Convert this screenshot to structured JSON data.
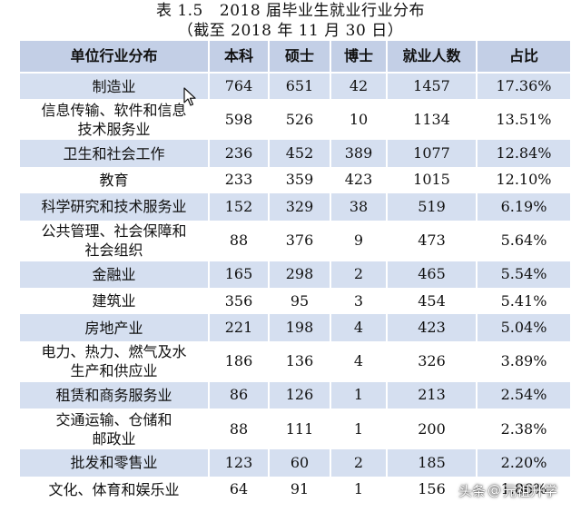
{
  "caption": {
    "table_number": "表 1.5",
    "title": "2018 届毕业生就业行业分布",
    "subtitle": "（截至 2018 年 11 月 30 日）"
  },
  "table": {
    "headers": [
      "单位行业分布",
      "本科",
      "硕士",
      "博士",
      "就业人数",
      "占比"
    ],
    "rows": [
      {
        "industry": [
          "制造业"
        ],
        "bachelor": "764",
        "master": "651",
        "doctor": "42",
        "total": "1457",
        "share": "17.36%"
      },
      {
        "industry": [
          "信息传输、软件和信息",
          "技术服务业"
        ],
        "bachelor": "598",
        "master": "526",
        "doctor": "10",
        "total": "1134",
        "share": "13.51%"
      },
      {
        "industry": [
          "卫生和社会工作"
        ],
        "bachelor": "236",
        "master": "452",
        "doctor": "389",
        "total": "1077",
        "share": "12.84%"
      },
      {
        "industry": [
          "教育"
        ],
        "bachelor": "233",
        "master": "359",
        "doctor": "423",
        "total": "1015",
        "share": "12.10%"
      },
      {
        "industry": [
          "科学研究和技术服务业"
        ],
        "bachelor": "152",
        "master": "329",
        "doctor": "38",
        "total": "519",
        "share": "6.19%"
      },
      {
        "industry": [
          "公共管理、社会保障和",
          "社会组织"
        ],
        "bachelor": "88",
        "master": "376",
        "doctor": "9",
        "total": "473",
        "share": "5.64%"
      },
      {
        "industry": [
          "金融业"
        ],
        "bachelor": "165",
        "master": "298",
        "doctor": "2",
        "total": "465",
        "share": "5.54%"
      },
      {
        "industry": [
          "建筑业"
        ],
        "bachelor": "356",
        "master": "95",
        "doctor": "3",
        "total": "454",
        "share": "5.41%"
      },
      {
        "industry": [
          "房地产业"
        ],
        "bachelor": "221",
        "master": "198",
        "doctor": "4",
        "total": "423",
        "share": "5.04%"
      },
      {
        "industry": [
          "电力、热力、燃气及水",
          "生产和供应业"
        ],
        "bachelor": "186",
        "master": "136",
        "doctor": "4",
        "total": "326",
        "share": "3.89%"
      },
      {
        "industry": [
          "租赁和商务服务业"
        ],
        "bachelor": "86",
        "master": "126",
        "doctor": "1",
        "total": "213",
        "share": "2.54%"
      },
      {
        "industry": [
          "交通运输、仓储和",
          "邮政业"
        ],
        "bachelor": "88",
        "master": "111",
        "doctor": "1",
        "total": "200",
        "share": "2.38%"
      },
      {
        "industry": [
          "批发和零售业"
        ],
        "bachelor": "123",
        "master": "60",
        "doctor": "2",
        "total": "185",
        "share": "2.20%"
      },
      {
        "industry": [
          "文化、体育和娱乐业"
        ],
        "bachelor": "64",
        "master": "91",
        "doctor": "1",
        "total": "156",
        "share": "1.86%"
      }
    ]
  },
  "watermark": {
    "platform": "头条",
    "at": "@",
    "account": "元祖升学"
  },
  "colors": {
    "header_bg": "#c3cfe6",
    "band_bg": "#d5dff0",
    "text": "#111111"
  },
  "icons": {
    "cursor": "mouse-pointer-icon"
  }
}
